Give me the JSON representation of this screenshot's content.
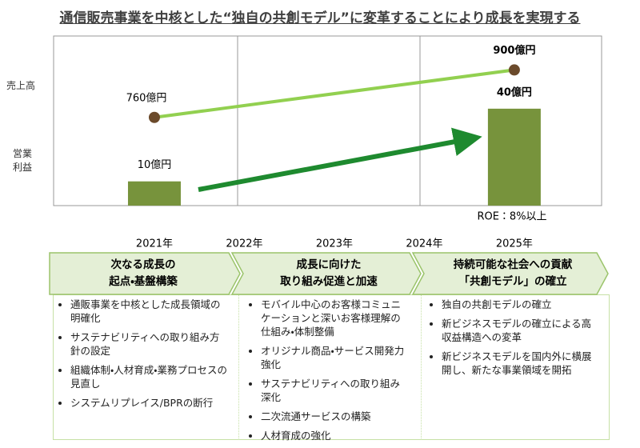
{
  "title": "通信販売事業を中核とした“独自の共創モデル”に変革することにより成長を実現する",
  "chart_data": {
    "type": "combo",
    "x": [
      2021,
      2025
    ],
    "xlim": [
      2019.88,
      2025.97
    ],
    "xticks": [
      {
        "value": 2021,
        "label": "2021年"
      },
      {
        "value": 2022,
        "label": "2022年"
      },
      {
        "value": 2023,
        "label": "2023年"
      },
      {
        "value": 2024,
        "label": "2024年"
      },
      {
        "value": 2025,
        "label": "2025年"
      }
    ],
    "ylim": [
      0,
      70
    ],
    "y2lim": [
      500,
      1000
    ],
    "series": [
      {
        "name": "売上高",
        "kind": "line",
        "axis": "y2",
        "color": "#92d050",
        "marker_color": "#6b4a2b",
        "values": [
          760,
          900
        ],
        "value_labels": [
          "760億円",
          "900億円"
        ]
      },
      {
        "name": "営業利益",
        "kind": "bar",
        "color": "#77933c",
        "values": [
          10,
          40
        ],
        "value_labels": [
          "10億円",
          "40億円"
        ]
      }
    ],
    "annotation": "ROE：8%以上"
  },
  "phases": [
    {
      "title_lines": [
        "次なる成長の",
        "起点・基盤構築"
      ],
      "items": [
        "通販事業を中核とした成長領域の明確化",
        "サステナビリティへの取り組み方針の設定",
        "組織体制・人材育成・業務プロセスの見直し",
        "システムリプレイス/BPRの断行"
      ]
    },
    {
      "title_lines": [
        "成長に向けた",
        "取り組み促進と加速"
      ],
      "items": [
        "モバイル中心のお客様コミュニケーションと深いお客様理解の仕組み・体制整備",
        "オリジナル商品・サービス開発力強化",
        "サステナビリティへの取り組み深化",
        "二次流通サービスの構築",
        "人材育成の強化"
      ]
    },
    {
      "title_lines": [
        "持続可能な社会への貢献",
        "「共創モデル」の確立"
      ],
      "items": [
        "独自の共創モデルの確立",
        "新ビジネスモデルの確立による高収益構造への変革",
        "新ビジネスモデルを国内外に横展開し、新たな事業領域を開拓"
      ]
    }
  ]
}
